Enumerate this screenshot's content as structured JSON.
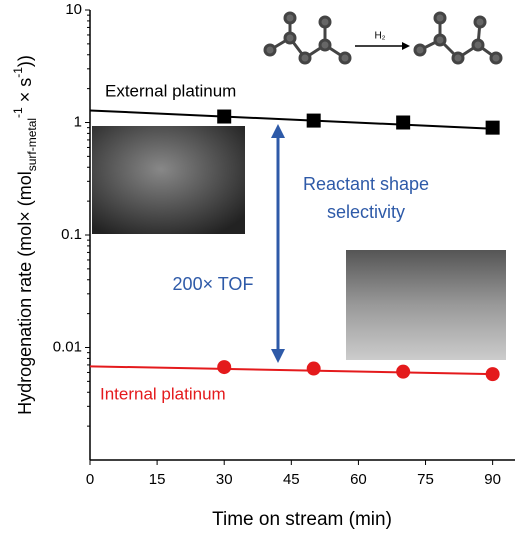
{
  "chart_data": {
    "type": "scatter",
    "x_label": "Time on stream (min)",
    "y_label_parts": [
      "Hydrogenation rate (mol× (mol",
      "surf-metal",
      "-1",
      " × s",
      "-1",
      "))"
    ],
    "xlim": [
      0,
      95
    ],
    "xticks": [
      0,
      15,
      30,
      45,
      60,
      75,
      90
    ],
    "ylim": [
      0.001,
      10
    ],
    "yticks": [
      0.01,
      0.1,
      1,
      10
    ],
    "y_scale": "log",
    "series": [
      {
        "name": "External platinum",
        "color": "#000000",
        "marker": "square",
        "x": [
          30,
          50,
          70,
          90
        ],
        "values": [
          1.13,
          1.04,
          1.0,
          0.9
        ]
      },
      {
        "name": "Internal platinum",
        "color": "#e41a1c",
        "marker": "circle",
        "x": [
          30,
          50,
          70,
          90
        ],
        "values": [
          0.0067,
          0.0065,
          0.0061,
          0.0058
        ]
      }
    ],
    "trend_lines": [
      {
        "color": "#000000",
        "x": [
          0,
          90
        ],
        "values": [
          1.28,
          0.88
        ]
      },
      {
        "color": "#e41a1c",
        "x": [
          0,
          90
        ],
        "values": [
          0.0068,
          0.0058
        ]
      }
    ],
    "annotations": {
      "selectivity": [
        "Reactant shape",
        "selectivity"
      ],
      "tof": "200× TOF",
      "color": "#2e5aa8"
    },
    "reaction_label": "H₂"
  }
}
